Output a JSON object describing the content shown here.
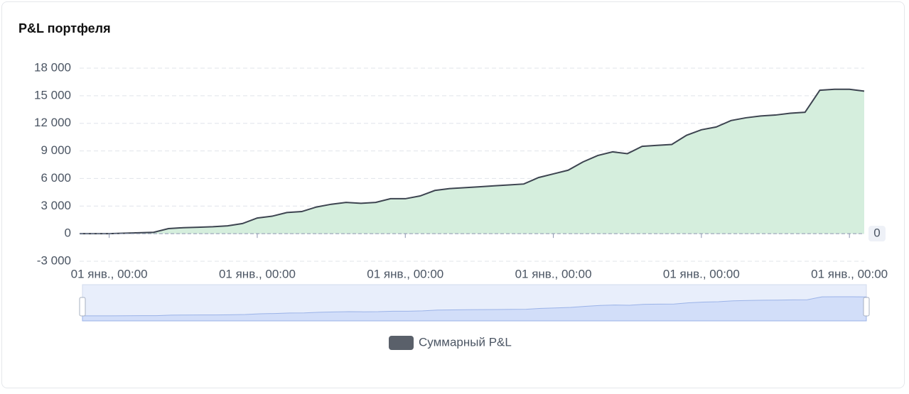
{
  "chart_data": {
    "type": "line",
    "title": "P&L портфеля",
    "categories": [
      null,
      null,
      "01 янв., 00:00",
      null,
      null,
      null,
      null,
      null,
      null,
      null,
      null,
      null,
      "01 янв., 00:00",
      null,
      null,
      null,
      null,
      null,
      null,
      null,
      null,
      null,
      "01 янв., 00:00",
      null,
      null,
      null,
      null,
      null,
      null,
      null,
      null,
      null,
      "01 янв., 00:00",
      null,
      null,
      null,
      null,
      null,
      null,
      null,
      null,
      null,
      "01 янв., 00:00",
      null,
      null,
      null,
      null,
      null,
      null,
      null,
      null,
      null,
      "01 янв., 00:00",
      null
    ],
    "series": [
      {
        "name": "Суммарный P&L",
        "color": "#3d4450",
        "area_color": "#d5eedd",
        "values": [
          0,
          0,
          0,
          50,
          100,
          150,
          550,
          650,
          700,
          750,
          850,
          1100,
          1700,
          1900,
          2300,
          2400,
          2900,
          3200,
          3400,
          3300,
          3400,
          3800,
          3800,
          4100,
          4700,
          4900,
          5000,
          5100,
          5200,
          5300,
          5400,
          6100,
          6500,
          6900,
          7800,
          8500,
          8900,
          8700,
          9500,
          9600,
          9700,
          10700,
          11300,
          11600,
          12300,
          12600,
          12800,
          12900,
          13100,
          13200,
          15600,
          15700,
          15700,
          15500
        ]
      }
    ],
    "ylim": [
      -3000,
      18000
    ],
    "yticks": [
      {
        "value": -3000,
        "label": "-3 000"
      },
      0,
      {
        "value": 3000,
        "label": "3 000"
      },
      {
        "value": 6000,
        "label": "6 000"
      },
      {
        "value": 9000,
        "label": "9 000"
      },
      {
        "value": 12000,
        "label": "12 000"
      },
      {
        "value": 15000,
        "label": "15 000"
      },
      {
        "value": 18000,
        "label": "18 000"
      }
    ],
    "mark_line_y": 0,
    "grid": true
  }
}
